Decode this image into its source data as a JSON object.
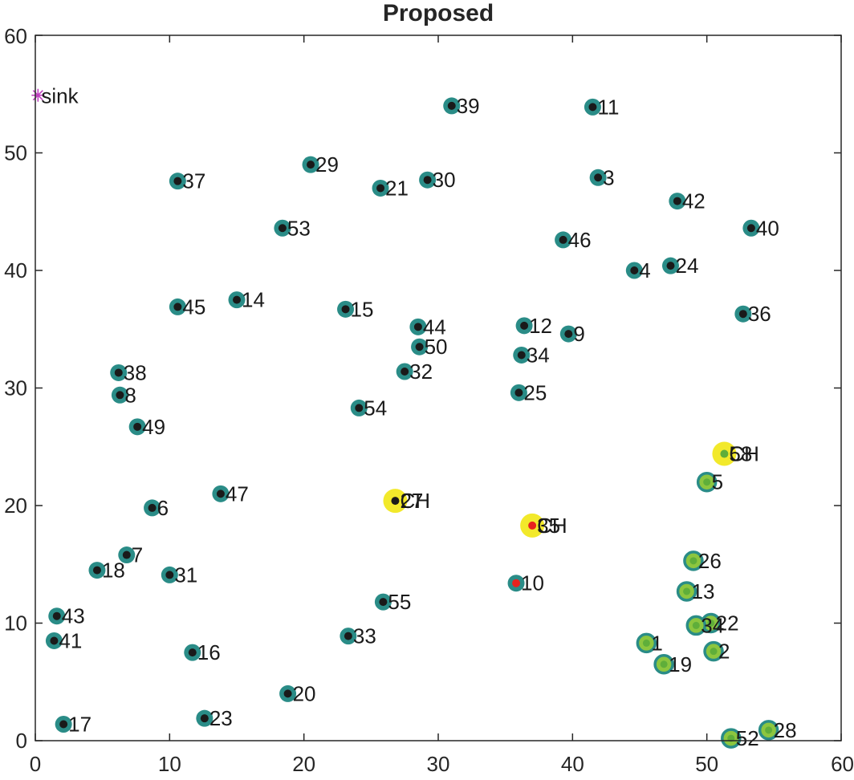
{
  "chart_data": {
    "type": "scatter",
    "title": "Proposed",
    "xlabel": "",
    "ylabel": "",
    "xlim": [
      0,
      60
    ],
    "ylim": [
      0,
      60
    ],
    "xticks": [
      0,
      10,
      20,
      30,
      40,
      50,
      60
    ],
    "yticks": [
      0,
      10,
      20,
      30,
      40,
      50,
      60
    ],
    "colors": {
      "ring_normal": "#2a8c87",
      "ring_cluster": "#8cc63f",
      "ring_ch": "#f2e92b",
      "dot_alive": "#1a1a1a",
      "dot_red": "#e8221e",
      "dot_green": "#5fae3a",
      "sink": "#c040c0"
    },
    "sink": {
      "label": "sink",
      "x": 0.2,
      "y": 54.9
    },
    "nodes": [
      {
        "label": "39",
        "x": 31.0,
        "y": 54.0,
        "ring": "normal",
        "dot": "alive"
      },
      {
        "label": "11",
        "x": 41.5,
        "y": 53.9,
        "ring": "normal",
        "dot": "alive"
      },
      {
        "label": "29",
        "x": 20.5,
        "y": 49.0,
        "ring": "normal",
        "dot": "alive"
      },
      {
        "label": "37",
        "x": 10.6,
        "y": 47.6,
        "ring": "normal",
        "dot": "alive"
      },
      {
        "label": "21",
        "x": 25.7,
        "y": 47.0,
        "ring": "normal",
        "dot": "alive"
      },
      {
        "label": "30",
        "x": 29.2,
        "y": 47.7,
        "ring": "normal",
        "dot": "alive"
      },
      {
        "label": "3",
        "x": 41.9,
        "y": 47.9,
        "ring": "normal",
        "dot": "alive"
      },
      {
        "label": "42",
        "x": 47.8,
        "y": 45.9,
        "ring": "normal",
        "dot": "alive"
      },
      {
        "label": "53",
        "x": 18.4,
        "y": 43.6,
        "ring": "normal",
        "dot": "alive"
      },
      {
        "label": "40",
        "x": 53.3,
        "y": 43.6,
        "ring": "normal",
        "dot": "alive"
      },
      {
        "label": "46",
        "x": 39.3,
        "y": 42.6,
        "ring": "normal",
        "dot": "alive"
      },
      {
        "label": "4",
        "x": 44.6,
        "y": 40.0,
        "ring": "normal",
        "dot": "alive"
      },
      {
        "label": "24",
        "x": 47.3,
        "y": 40.4,
        "ring": "normal",
        "dot": "alive"
      },
      {
        "label": "14",
        "x": 15.0,
        "y": 37.5,
        "ring": "normal",
        "dot": "alive"
      },
      {
        "label": "45",
        "x": 10.6,
        "y": 36.9,
        "ring": "normal",
        "dot": "alive"
      },
      {
        "label": "15",
        "x": 23.1,
        "y": 36.7,
        "ring": "normal",
        "dot": "alive"
      },
      {
        "label": "36",
        "x": 52.7,
        "y": 36.3,
        "ring": "normal",
        "dot": "alive"
      },
      {
        "label": "44",
        "x": 28.5,
        "y": 35.2,
        "ring": "normal",
        "dot": "alive"
      },
      {
        "label": "12",
        "x": 36.4,
        "y": 35.3,
        "ring": "normal",
        "dot": "alive"
      },
      {
        "label": "9",
        "x": 39.7,
        "y": 34.6,
        "ring": "normal",
        "dot": "alive"
      },
      {
        "label": "50",
        "x": 28.6,
        "y": 33.5,
        "ring": "normal",
        "dot": "alive"
      },
      {
        "label": "34",
        "x": 36.2,
        "y": 32.8,
        "ring": "normal",
        "dot": "alive"
      },
      {
        "label": "32",
        "x": 27.5,
        "y": 31.4,
        "ring": "normal",
        "dot": "alive"
      },
      {
        "label": "38",
        "x": 6.2,
        "y": 31.3,
        "ring": "normal",
        "dot": "alive"
      },
      {
        "label": "8",
        "x": 6.3,
        "y": 29.4,
        "ring": "normal",
        "dot": "alive"
      },
      {
        "label": "25",
        "x": 36.0,
        "y": 29.6,
        "ring": "normal",
        "dot": "alive"
      },
      {
        "label": "54",
        "x": 24.1,
        "y": 28.3,
        "ring": "normal",
        "dot": "alive"
      },
      {
        "label": "49",
        "x": 7.6,
        "y": 26.7,
        "ring": "normal",
        "dot": "alive"
      },
      {
        "label": "CH",
        "x": 51.3,
        "y": 24.4,
        "ring": "ch",
        "dot": "green",
        "label_overlap": "58"
      },
      {
        "label": "5",
        "x": 50.0,
        "y": 22.0,
        "ring": "cluster",
        "dot": "green"
      },
      {
        "label": "47",
        "x": 13.8,
        "y": 21.0,
        "ring": "normal",
        "dot": "alive"
      },
      {
        "label": "CH",
        "x": 26.8,
        "y": 20.4,
        "ring": "ch",
        "dot": "alive",
        "label_overlap": "27"
      },
      {
        "label": "6",
        "x": 8.7,
        "y": 19.8,
        "ring": "normal",
        "dot": "alive"
      },
      {
        "label": "CH",
        "x": 37.0,
        "y": 18.3,
        "ring": "ch",
        "dot": "red",
        "label_overlap": "35"
      },
      {
        "label": "7",
        "x": 6.8,
        "y": 15.8,
        "ring": "normal",
        "dot": "alive"
      },
      {
        "label": "26",
        "x": 49.0,
        "y": 15.3,
        "ring": "cluster",
        "dot": "green"
      },
      {
        "label": "18",
        "x": 4.6,
        "y": 14.5,
        "ring": "normal",
        "dot": "alive"
      },
      {
        "label": "31",
        "x": 10.0,
        "y": 14.1,
        "ring": "normal",
        "dot": "alive"
      },
      {
        "label": "10",
        "x": 35.8,
        "y": 13.4,
        "ring": "normal",
        "dot": "red"
      },
      {
        "label": "13",
        "x": 48.5,
        "y": 12.7,
        "ring": "cluster",
        "dot": "green"
      },
      {
        "label": "55",
        "x": 25.9,
        "y": 11.8,
        "ring": "normal",
        "dot": "alive"
      },
      {
        "label": "43",
        "x": 1.6,
        "y": 10.6,
        "ring": "normal",
        "dot": "alive"
      },
      {
        "label": "22",
        "x": 50.3,
        "y": 10.0,
        "ring": "cluster",
        "dot": "green"
      },
      {
        "label": "34",
        "x": 49.2,
        "y": 9.8,
        "ring": "cluster",
        "dot": "green"
      },
      {
        "label": "33",
        "x": 23.3,
        "y": 8.9,
        "ring": "normal",
        "dot": "alive"
      },
      {
        "label": "41",
        "x": 1.4,
        "y": 8.5,
        "ring": "normal",
        "dot": "alive"
      },
      {
        "label": "1",
        "x": 45.5,
        "y": 8.3,
        "ring": "cluster",
        "dot": "green"
      },
      {
        "label": "2",
        "x": 50.5,
        "y": 7.6,
        "ring": "cluster",
        "dot": "green"
      },
      {
        "label": "16",
        "x": 11.7,
        "y": 7.5,
        "ring": "normal",
        "dot": "alive"
      },
      {
        "label": "19",
        "x": 46.8,
        "y": 6.5,
        "ring": "cluster",
        "dot": "green"
      },
      {
        "label": "20",
        "x": 18.8,
        "y": 4.0,
        "ring": "normal",
        "dot": "alive"
      },
      {
        "label": "23",
        "x": 12.6,
        "y": 1.9,
        "ring": "normal",
        "dot": "alive"
      },
      {
        "label": "17",
        "x": 2.1,
        "y": 1.4,
        "ring": "normal",
        "dot": "alive"
      },
      {
        "label": "28",
        "x": 54.6,
        "y": 0.9,
        "ring": "cluster",
        "dot": "green"
      },
      {
        "label": "52",
        "x": 51.8,
        "y": 0.2,
        "ring": "cluster",
        "dot": "green"
      }
    ]
  }
}
